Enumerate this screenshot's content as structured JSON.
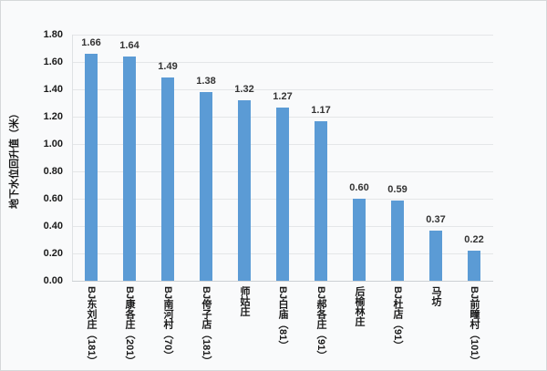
{
  "chart_data": {
    "type": "bar",
    "title": "",
    "xlabel": "",
    "ylabel": "地下水位回升值（米）",
    "categories": [
      "BJ东刘庄（181）",
      "BJ康各庄（201）",
      "BJ南河村（70）",
      "BJ侉子店（181）",
      "师姑庄",
      "BJ白庙（81）",
      "BJ郝各庄（91）",
      "后榆林庄",
      "BJ杜店（91）",
      "马坊",
      "BJ前疃村（101）"
    ],
    "values": [
      1.66,
      1.64,
      1.49,
      1.38,
      1.32,
      1.27,
      1.17,
      0.6,
      0.59,
      0.37,
      0.22
    ],
    "value_labels": [
      "1.66",
      "1.64",
      "1.49",
      "1.38",
      "1.32",
      "1.27",
      "1.17",
      "0.60",
      "0.59",
      "0.37",
      "0.22"
    ],
    "ylim": [
      0,
      1.8
    ],
    "ytick_step": 0.2,
    "ytick_labels": [
      "1.80",
      "1.60",
      "1.40",
      "1.20",
      "1.00",
      "0.80",
      "0.60",
      "0.40",
      "0.20",
      "0.00"
    ],
    "grid": true,
    "legend_position": "none",
    "bar_color": "#5B9BD5",
    "background_color": "#F9FAFB",
    "gridline_color": "#E4E6E8"
  }
}
